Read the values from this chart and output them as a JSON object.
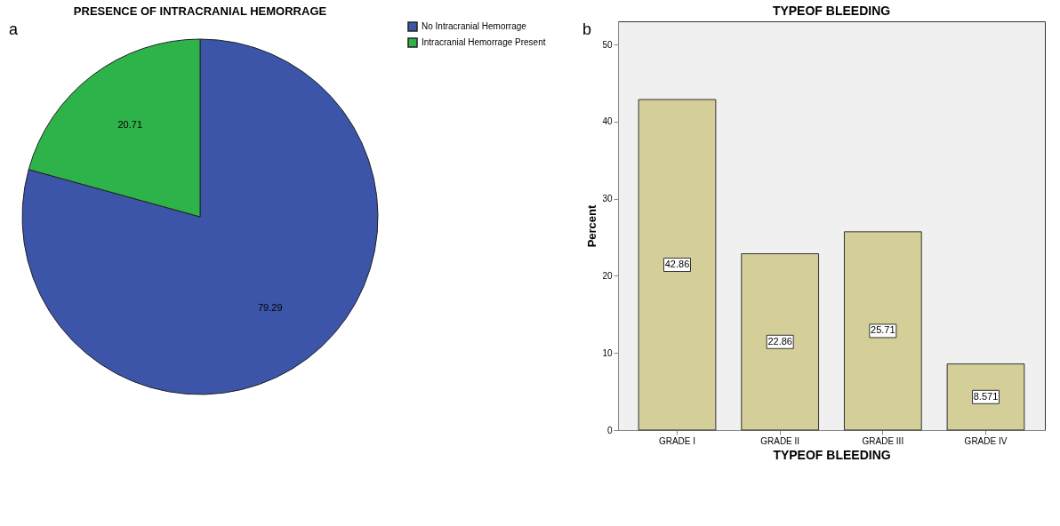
{
  "chart_data": [
    {
      "type": "pie",
      "title": "PRESENCE OF INTRACRANIAL HEMORRAGE",
      "categories": [
        "No Intracranial Hemorrage",
        "Intracranial Hemorrage Present"
      ],
      "values": [
        79.29,
        20.71
      ],
      "colors": [
        "#3c55a8",
        "#2db34a"
      ],
      "data_labels": true,
      "legend": "top right",
      "annotations": [
        "a"
      ]
    },
    {
      "type": "bar",
      "title": "TYPEOF BLEEDING",
      "xlabel": "TYPEOF BLEEDING",
      "ylabel": "Percent",
      "categories": [
        "GRADE I",
        "GRADE II",
        "GRADE III",
        "GRADE IV"
      ],
      "values": [
        42.86,
        22.86,
        25.71,
        8.571
      ],
      "color": "#d4cf98",
      "ylim": [
        0,
        53
      ],
      "yticks": [
        0,
        10,
        20,
        30,
        40,
        50
      ],
      "grid": false,
      "data_labels": true,
      "annotations": [
        "b"
      ]
    }
  ]
}
